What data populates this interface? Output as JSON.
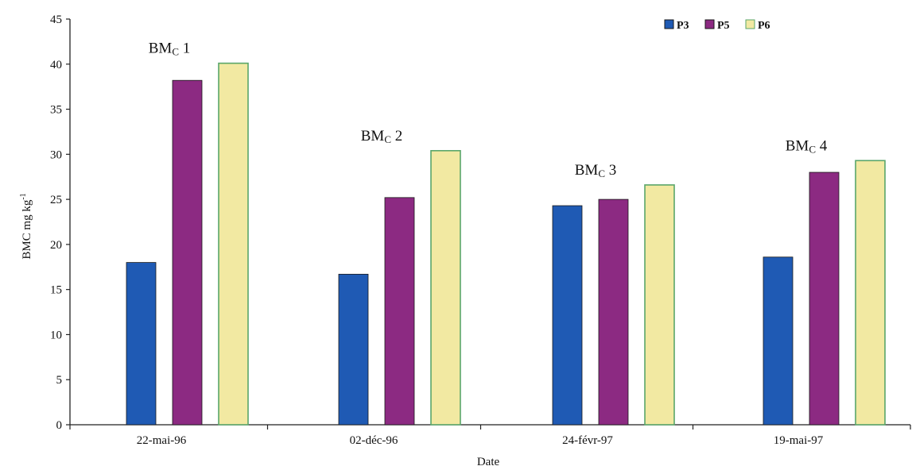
{
  "chart_data": {
    "type": "bar",
    "title": "",
    "xlabel": "Date",
    "ylabel": "BMC mg kg-1",
    "ylabel_parts": {
      "main": "BMC mg kg",
      "sup": "-1"
    },
    "ylim": [
      0,
      45
    ],
    "yticks": [
      0,
      5,
      10,
      15,
      20,
      25,
      30,
      35,
      40,
      45
    ],
    "categories": [
      "22-mai-96",
      "02-déc-96",
      "24-févr-97",
      "19-mai-97"
    ],
    "group_labels": [
      {
        "main": "BM",
        "sub": "C",
        "num": " 1"
      },
      {
        "main": "BM",
        "sub": "C",
        "num": " 2"
      },
      {
        "main": "BM",
        "sub": "C",
        "num": " 3"
      },
      {
        "main": "BM",
        "sub": "C",
        "num": " 4"
      }
    ],
    "series": [
      {
        "name": "P3",
        "color": "#1f5ab4",
        "values": [
          18.0,
          16.7,
          24.3,
          18.6
        ]
      },
      {
        "name": "P5",
        "color": "#8c2a82",
        "values": [
          38.2,
          25.2,
          25.0,
          28.0
        ]
      },
      {
        "name": "P6",
        "color": "#f2e9a2",
        "values": [
          40.1,
          30.4,
          26.6,
          29.3
        ]
      }
    ],
    "legend_position": "top-right",
    "grid": false
  }
}
